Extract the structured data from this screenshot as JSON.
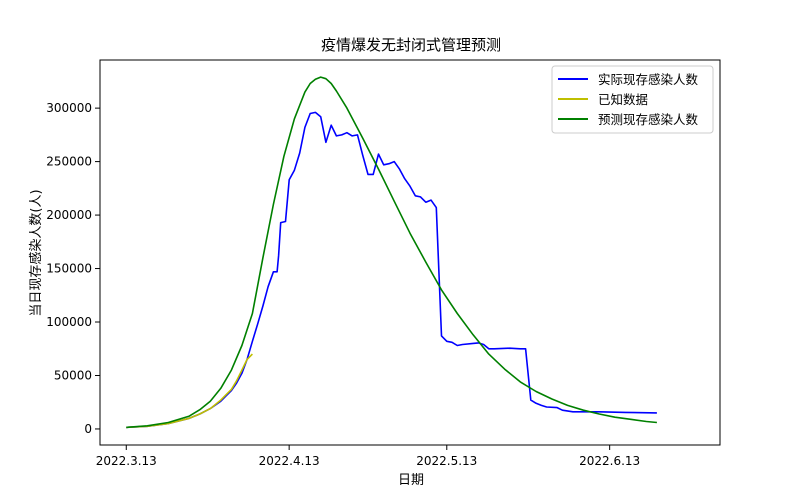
{
  "chart_data": {
    "type": "line",
    "title": "疫情爆发无封闭式管理预测",
    "xlabel": "日期",
    "ylabel": "当日现存感染人数(人)",
    "x_start": "2022-03-13",
    "xlim_days": [
      -5,
      113
    ],
    "ylim": [
      -15000,
      345000
    ],
    "xticks": [
      {
        "label": "2022.3.13",
        "day": 0
      },
      {
        "label": "2022.4.13",
        "day": 31
      },
      {
        "label": "2022.5.13",
        "day": 61
      },
      {
        "label": "2022.6.13",
        "day": 92
      }
    ],
    "yticks": [
      {
        "label": "0",
        "value": 0
      },
      {
        "label": "50000",
        "value": 50000
      },
      {
        "label": "100000",
        "value": 100000
      },
      {
        "label": "150000",
        "value": 150000
      },
      {
        "label": "200000",
        "value": 200000
      },
      {
        "label": "250000",
        "value": 250000
      },
      {
        "label": "300000",
        "value": 300000
      }
    ],
    "grid": false,
    "legend_position": "top-right",
    "series": [
      {
        "name": "实际现存感染人数",
        "color": "#0000ff",
        "points": [
          [
            0,
            1500
          ],
          [
            4,
            2500
          ],
          [
            8,
            5000
          ],
          [
            12,
            10000
          ],
          [
            14,
            14000
          ],
          [
            16,
            19000
          ],
          [
            18,
            26000
          ],
          [
            19,
            31000
          ],
          [
            20,
            36000
          ],
          [
            21,
            43000
          ],
          [
            22,
            52000
          ],
          [
            23,
            65000
          ],
          [
            24,
            82000
          ],
          [
            25,
            98000
          ],
          [
            26,
            115000
          ],
          [
            27,
            133000
          ],
          [
            28,
            147000
          ],
          [
            28.7,
            147000
          ],
          [
            29,
            162000
          ],
          [
            29.4,
            193000
          ],
          [
            30.3,
            194000
          ],
          [
            31,
            233000
          ],
          [
            32,
            242000
          ],
          [
            33,
            258000
          ],
          [
            34,
            282000
          ],
          [
            35,
            295000
          ],
          [
            36,
            296000
          ],
          [
            37,
            292000
          ],
          [
            38,
            268000
          ],
          [
            39,
            284000
          ],
          [
            40,
            274000
          ],
          [
            41,
            275000
          ],
          [
            42,
            277000
          ],
          [
            43,
            274000
          ],
          [
            44,
            275000
          ],
          [
            45,
            256000
          ],
          [
            46,
            238000
          ],
          [
            47,
            238000
          ],
          [
            48,
            257000
          ],
          [
            49,
            247000
          ],
          [
            50,
            248000
          ],
          [
            51,
            250000
          ],
          [
            52,
            243000
          ],
          [
            53,
            234000
          ],
          [
            54,
            227000
          ],
          [
            55,
            218000
          ],
          [
            56,
            217000
          ],
          [
            57,
            212000
          ],
          [
            58,
            214000
          ],
          [
            59,
            207000
          ],
          [
            60,
            87000
          ],
          [
            61,
            82000
          ],
          [
            62,
            81000
          ],
          [
            63,
            78000
          ],
          [
            64,
            79000
          ],
          [
            66,
            80000
          ],
          [
            67,
            80500
          ],
          [
            68,
            79000
          ],
          [
            69,
            75000
          ],
          [
            70,
            75000
          ],
          [
            73,
            75500
          ],
          [
            75,
            75000
          ],
          [
            76,
            75000
          ],
          [
            77,
            27000
          ],
          [
            78,
            24000
          ],
          [
            79,
            22000
          ],
          [
            80,
            20500
          ],
          [
            82,
            20000
          ],
          [
            83,
            17500
          ],
          [
            85,
            16000
          ],
          [
            90,
            16000
          ],
          [
            95,
            15500
          ],
          [
            101,
            15000
          ]
        ]
      },
      {
        "name": "已知数据",
        "color": "#bfbf00",
        "points": [
          [
            0,
            1500
          ],
          [
            4,
            2500
          ],
          [
            8,
            5000
          ],
          [
            12,
            10000
          ],
          [
            14,
            14000
          ],
          [
            16,
            19000
          ],
          [
            18,
            27000
          ],
          [
            19,
            32000
          ],
          [
            20,
            37000
          ],
          [
            21,
            45000
          ],
          [
            22,
            55000
          ],
          [
            23,
            65000
          ],
          [
            24,
            70000
          ]
        ]
      },
      {
        "name": "预测现存感染人数",
        "color": "#008000",
        "points": [
          [
            0,
            1500
          ],
          [
            4,
            3000
          ],
          [
            8,
            6000
          ],
          [
            12,
            12000
          ],
          [
            14,
            18000
          ],
          [
            16,
            26000
          ],
          [
            18,
            38000
          ],
          [
            20,
            55000
          ],
          [
            22,
            78000
          ],
          [
            24,
            108000
          ],
          [
            26,
            160000
          ],
          [
            28,
            210000
          ],
          [
            30,
            255000
          ],
          [
            32,
            290000
          ],
          [
            34,
            315000
          ],
          [
            35,
            323000
          ],
          [
            36,
            327000
          ],
          [
            37,
            329000
          ],
          [
            38,
            327500
          ],
          [
            39,
            323000
          ],
          [
            40,
            316000
          ],
          [
            42,
            300000
          ],
          [
            45,
            272000
          ],
          [
            48,
            243000
          ],
          [
            51,
            213000
          ],
          [
            54,
            183000
          ],
          [
            57,
            156000
          ],
          [
            60,
            130000
          ],
          [
            63,
            108000
          ],
          [
            66,
            88000
          ],
          [
            69,
            70000
          ],
          [
            72,
            56000
          ],
          [
            75,
            44000
          ],
          [
            78,
            35000
          ],
          [
            81,
            28000
          ],
          [
            84,
            22000
          ],
          [
            87,
            17500
          ],
          [
            90,
            14000
          ],
          [
            93,
            11000
          ],
          [
            96,
            9000
          ],
          [
            99,
            7000
          ],
          [
            101,
            6000
          ]
        ]
      }
    ]
  }
}
